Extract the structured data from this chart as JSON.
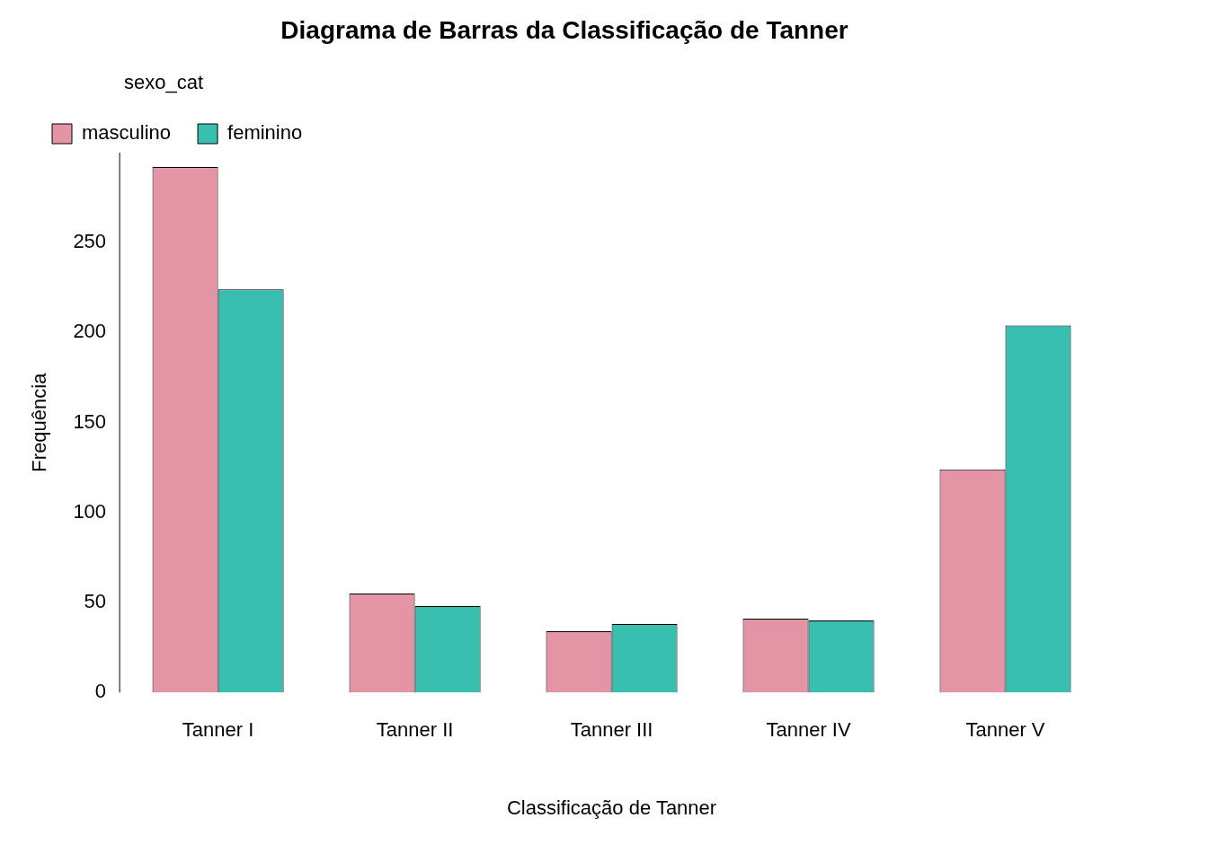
{
  "chart_data": {
    "type": "bar",
    "title": "Diagrama de Barras da Classificação de Tanner",
    "xlabel": "Classificação de Tanner",
    "ylabel": "Frequência",
    "legend_title": "sexo_cat",
    "legend": "top left",
    "categories": [
      "Tanner I",
      "Tanner II",
      "Tanner III",
      "Tanner IV",
      "Tanner V"
    ],
    "series": [
      {
        "name": "masculino",
        "color": "#e495a5",
        "values": [
          292,
          55,
          34,
          41,
          124
        ]
      },
      {
        "name": "feminino",
        "color": "#39bfb0",
        "values": [
          224,
          48,
          38,
          40,
          204
        ]
      }
    ],
    "ylim": [
      0,
      300
    ],
    "yticks": [
      0,
      50,
      100,
      150,
      200,
      250
    ],
    "grid": false
  }
}
